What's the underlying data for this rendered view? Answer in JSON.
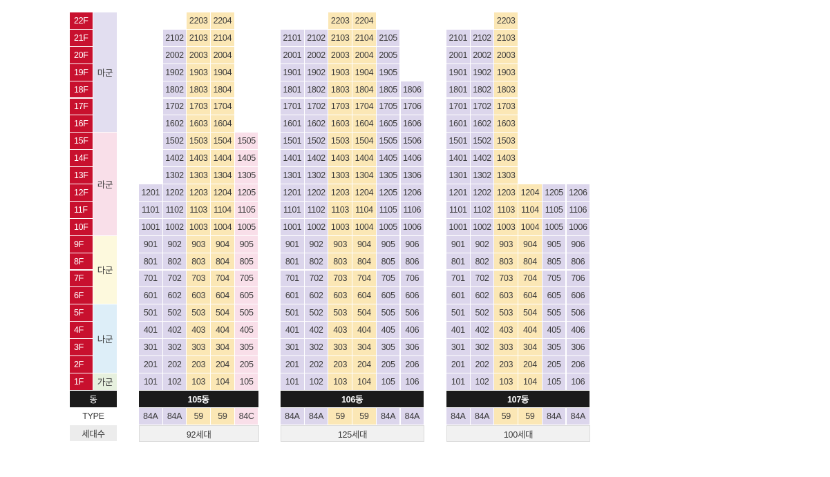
{
  "floors": [
    "22F",
    "21F",
    "20F",
    "19F",
    "18F",
    "17F",
    "16F",
    "15F",
    "14F",
    "13F",
    "12F",
    "11F",
    "10F",
    "9F",
    "8F",
    "7F",
    "6F",
    "5F",
    "4F",
    "3F",
    "2F",
    "1F"
  ],
  "bands": [
    {
      "label": "마군",
      "from": 0,
      "to": 6,
      "color": "#e2def0"
    },
    {
      "label": "라군",
      "from": 7,
      "to": 12,
      "color": "#f9dfe9"
    },
    {
      "label": "다군",
      "from": 13,
      "to": 16,
      "color": "#fdf9dd"
    },
    {
      "label": "나군",
      "from": 17,
      "to": 20,
      "color": "#ddeef8"
    },
    {
      "label": "가군",
      "from": 21,
      "to": 21,
      "color": "#e6f0de"
    }
  ],
  "labels": {
    "dong": "동",
    "type": "TYPE",
    "sedae": "세대수"
  },
  "colors": {
    "purple": "#dcd6ec",
    "yellow": "#fbe7b5",
    "pink": "#f9dfe9",
    "floor": "#c8102e",
    "dark": "#1b1b1b"
  },
  "buildings": [
    {
      "name": "105동",
      "total": "92세대",
      "types": [
        "84A",
        "84A",
        "59",
        "59",
        "84C"
      ],
      "colColors": [
        "purple",
        "purple",
        "yellow",
        "yellow",
        "pink"
      ],
      "maxFloor": [
        12,
        21,
        22,
        22,
        15
      ]
    },
    {
      "name": "106동",
      "total": "125세대",
      "types": [
        "84A",
        "84A",
        "59",
        "59",
        "84A",
        "84A"
      ],
      "colColors": [
        "purple",
        "purple",
        "yellow",
        "yellow",
        "purple",
        "purple"
      ],
      "maxFloor": [
        21,
        21,
        22,
        22,
        21,
        18
      ]
    },
    {
      "name": "107동",
      "total": "100세대",
      "types": [
        "84A",
        "84A",
        "59",
        "59",
        "84A",
        "84A"
      ],
      "colColors": [
        "purple",
        "purple",
        "yellow",
        "yellow",
        "purple",
        "purple"
      ],
      "maxFloor": [
        21,
        21,
        22,
        12,
        12,
        12
      ]
    }
  ]
}
